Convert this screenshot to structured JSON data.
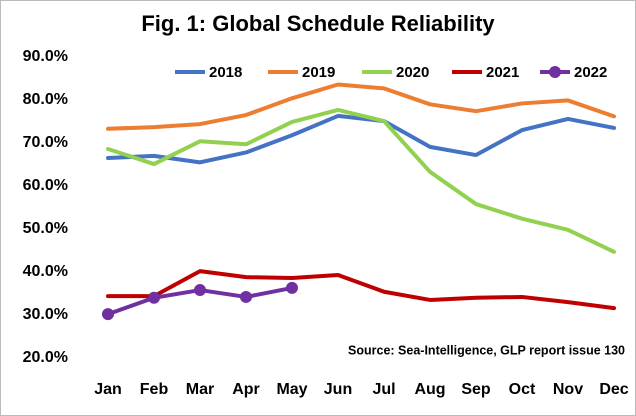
{
  "chart_data": {
    "type": "line",
    "title": "Fig. 1: Global Schedule Reliability",
    "annotation": "Source: Sea-Intelligence, GLP report issue 130",
    "categories": [
      "Jan",
      "Feb",
      "Mar",
      "Apr",
      "May",
      "Jun",
      "Jul",
      "Aug",
      "Sep",
      "Oct",
      "Nov",
      "Dec"
    ],
    "series": [
      {
        "name": "2018",
        "color": "#4472c4",
        "values": [
          66.5,
          67.0,
          65.5,
          67.8,
          71.8,
          76.3,
          75.1,
          69.1,
          67.2,
          73.0,
          75.6,
          73.5
        ]
      },
      {
        "name": "2019",
        "color": "#ed7d31",
        "values": [
          73.3,
          73.7,
          74.4,
          76.5,
          80.4,
          83.6,
          82.7,
          79.0,
          77.4,
          79.2,
          79.9,
          76.2
        ]
      },
      {
        "name": "2020",
        "color": "#92d050",
        "values": [
          68.6,
          65.1,
          70.4,
          69.7,
          74.9,
          77.7,
          75.1,
          63.3,
          55.8,
          52.4,
          49.8,
          44.7
        ]
      },
      {
        "name": "2021",
        "color": "#c00000",
        "values": [
          34.4,
          34.4,
          40.2,
          38.8,
          38.6,
          39.3,
          35.4,
          33.5,
          34.0,
          34.2,
          33.0,
          31.6
        ]
      },
      {
        "name": "2022",
        "color": "#7030a0",
        "marker": true,
        "values": [
          30.2,
          34.0,
          35.8,
          34.2,
          36.3,
          null,
          null,
          null,
          null,
          null,
          null,
          null
        ]
      }
    ],
    "ylim": [
      20,
      90
    ],
    "yticks": [
      {
        "value": 20,
        "label": "20.0%"
      },
      {
        "value": 30,
        "label": "30.0%"
      },
      {
        "value": 40,
        "label": "40.0%"
      },
      {
        "value": 50,
        "label": "50.0%"
      },
      {
        "value": 60,
        "label": "60.0%"
      },
      {
        "value": 70,
        "label": "70.0%"
      },
      {
        "value": 80,
        "label": "80.0%"
      },
      {
        "value": 90,
        "label": "90.0%"
      }
    ],
    "grid": false,
    "legend": "top"
  }
}
